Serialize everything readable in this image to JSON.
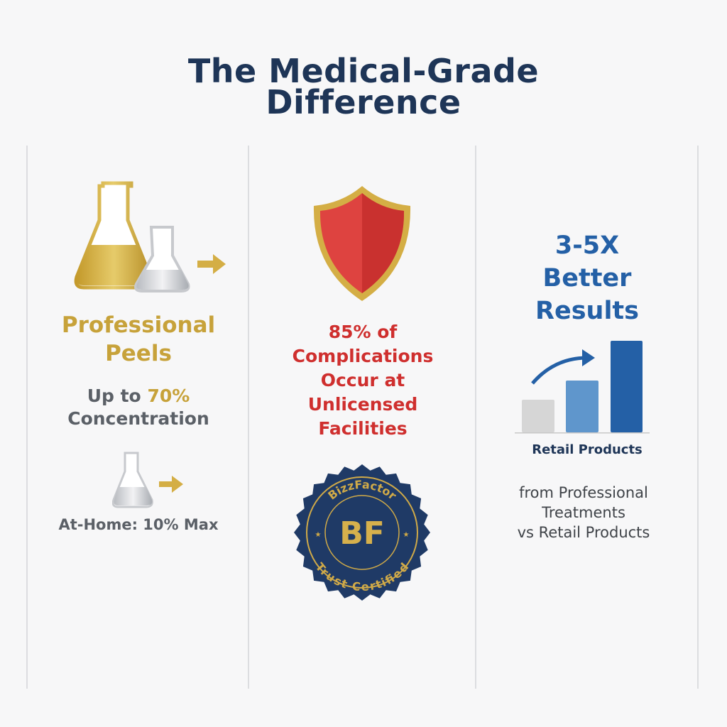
{
  "title": {
    "line1": "The Medical-Grade",
    "line2": "Difference"
  },
  "column1": {
    "heading_line1": "Professional",
    "heading_line2": "Peels",
    "conc_prefix": "Up to ",
    "conc_value": "70%",
    "conc_label": "Concentration",
    "at_home": "At-Home: 10% Max",
    "colors": {
      "gold": "#c7a23a",
      "gray": "#5b6067"
    }
  },
  "column2": {
    "lines": [
      "85% of",
      "Complications",
      "Occur at",
      "Unlicensed",
      "Facilities"
    ],
    "badge": {
      "top_text": "BizzFactor",
      "monogram": "BF",
      "bottom_text": "Trust Certified"
    },
    "colors": {
      "red": "#cf2f2e",
      "navy": "#1f3a66"
    }
  },
  "column3": {
    "headline_lines": [
      "3-5X",
      "Better",
      "Results"
    ],
    "chart_label": "Retail Products",
    "caption_lines": [
      "from Professional",
      "Treatments",
      "vs Retail Products"
    ],
    "colors": {
      "blue": "#2460a6",
      "light_blue": "#5f96cc",
      "gray_bar": "#d6d6d6"
    }
  }
}
